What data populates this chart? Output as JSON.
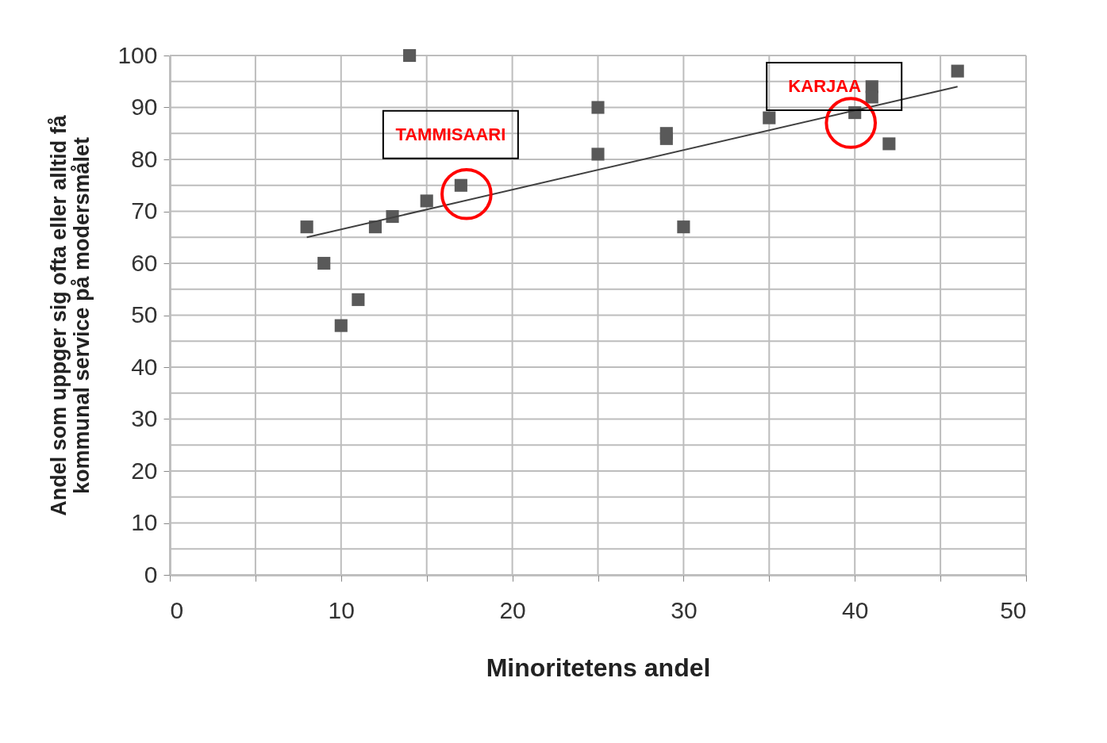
{
  "chart_data": {
    "type": "scatter",
    "xlabel": "Minoritetens andel",
    "ylabel": "Andel  som uppger sig ofta eller alltid få\nkommunal service på modersmålet",
    "xlim": [
      0,
      50
    ],
    "xticks": [
      0,
      {
        "value": 5,
        "label": null
      },
      10,
      {
        "value": 15,
        "label": null
      },
      20,
      {
        "value": 25,
        "label": null
      },
      30,
      {
        "value": 35,
        "label": null
      },
      40,
      {
        "value": 45,
        "label": null
      },
      50
    ],
    "ylim": [
      0,
      100
    ],
    "yticks": [
      0,
      {
        "value": 5,
        "label": null
      },
      10,
      {
        "value": 15,
        "label": null
      },
      20,
      {
        "value": 25,
        "label": null
      },
      30,
      {
        "value": 35,
        "label": null
      },
      40,
      {
        "value": 45,
        "label": null
      },
      50,
      {
        "value": 55,
        "label": null
      },
      60,
      {
        "value": 65,
        "label": null
      },
      70,
      {
        "value": 75,
        "label": null
      },
      80,
      {
        "value": 85,
        "label": null
      },
      90,
      {
        "value": 95,
        "label": null
      },
      100
    ],
    "grid": true,
    "series": [
      {
        "marker": "square",
        "color": "#595959",
        "x": [
          8,
          9,
          10,
          11,
          12,
          13,
          14,
          15,
          17,
          25,
          25,
          29,
          29,
          30,
          35,
          40,
          41,
          41,
          42,
          46
        ],
        "values": [
          67,
          60,
          48,
          53,
          67,
          69,
          100,
          72,
          75,
          90,
          81,
          85,
          84,
          67,
          88,
          89,
          94,
          92,
          83,
          97
        ]
      },
      {
        "type": "line",
        "color": "#404040",
        "x": [
          8,
          46
        ],
        "values": [
          65,
          94
        ]
      }
    ],
    "annotations": [
      {
        "text": "TAMMISAARI",
        "x": 17,
        "y": 75
      },
      {
        "text": "KARJAA",
        "x": 40,
        "y": 89
      }
    ]
  }
}
